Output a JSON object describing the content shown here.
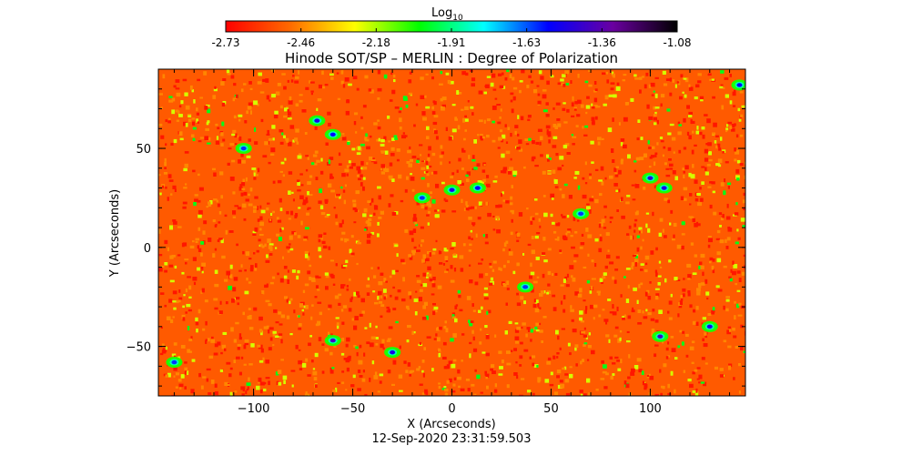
{
  "colorbar": {
    "label_main": "Log",
    "label_sub": "10",
    "tick_labels": [
      "-2.73",
      "-2.46",
      "-2.18",
      "-1.91",
      "-1.63",
      "-1.36",
      "-1.08"
    ],
    "colormap": [
      "#ff0000",
      "#ff6a00",
      "#ffff00",
      "#00ff00",
      "#00ffff",
      "#0000ff",
      "#6a00a0",
      "#000000"
    ]
  },
  "chart_data": {
    "type": "heatmap",
    "title": "Hinode SOT/SP – MERLIN : Degree of Polarization",
    "xlabel": "X (Arcseconds)",
    "ylabel": "Y (Arcseconds)",
    "xlim": [
      -148,
      148
    ],
    "ylim": [
      -75,
      90
    ],
    "value_range_log10": [
      -2.73,
      -1.08
    ],
    "x_ticks": [
      -100,
      -50,
      0,
      50,
      100
    ],
    "y_ticks": [
      -50,
      0,
      50
    ],
    "x_tick_labels": [
      "−100",
      "−50",
      "0",
      "50",
      "100"
    ],
    "y_tick_labels": [
      "−50",
      "0",
      "50"
    ],
    "background_level_log10": -2.6,
    "features": [
      {
        "x": -68,
        "y": 64,
        "level_log10": -1.5
      },
      {
        "x": -60,
        "y": 57,
        "level_log10": -1.55
      },
      {
        "x": 0,
        "y": 29,
        "level_log10": -1.5
      },
      {
        "x": 13,
        "y": 30,
        "level_log10": -1.55
      },
      {
        "x": -15,
        "y": 25,
        "level_log10": -1.6
      },
      {
        "x": 100,
        "y": 35,
        "level_log10": -1.45
      },
      {
        "x": 107,
        "y": 30,
        "level_log10": -1.5
      },
      {
        "x": 105,
        "y": -45,
        "level_log10": -1.4
      },
      {
        "x": 130,
        "y": -40,
        "level_log10": -1.5
      },
      {
        "x": -60,
        "y": -47,
        "level_log10": -1.4
      },
      {
        "x": -30,
        "y": -53,
        "level_log10": -1.5
      },
      {
        "x": 37,
        "y": -20,
        "level_log10": -1.6
      },
      {
        "x": 65,
        "y": 17,
        "level_log10": -1.6
      },
      {
        "x": 145,
        "y": 82,
        "level_log10": -1.55
      },
      {
        "x": -105,
        "y": 50,
        "level_log10": -1.6
      },
      {
        "x": -140,
        "y": -58,
        "level_log10": -1.6
      }
    ]
  },
  "timestamp": "12-Sep-2020 23:31:59.503"
}
